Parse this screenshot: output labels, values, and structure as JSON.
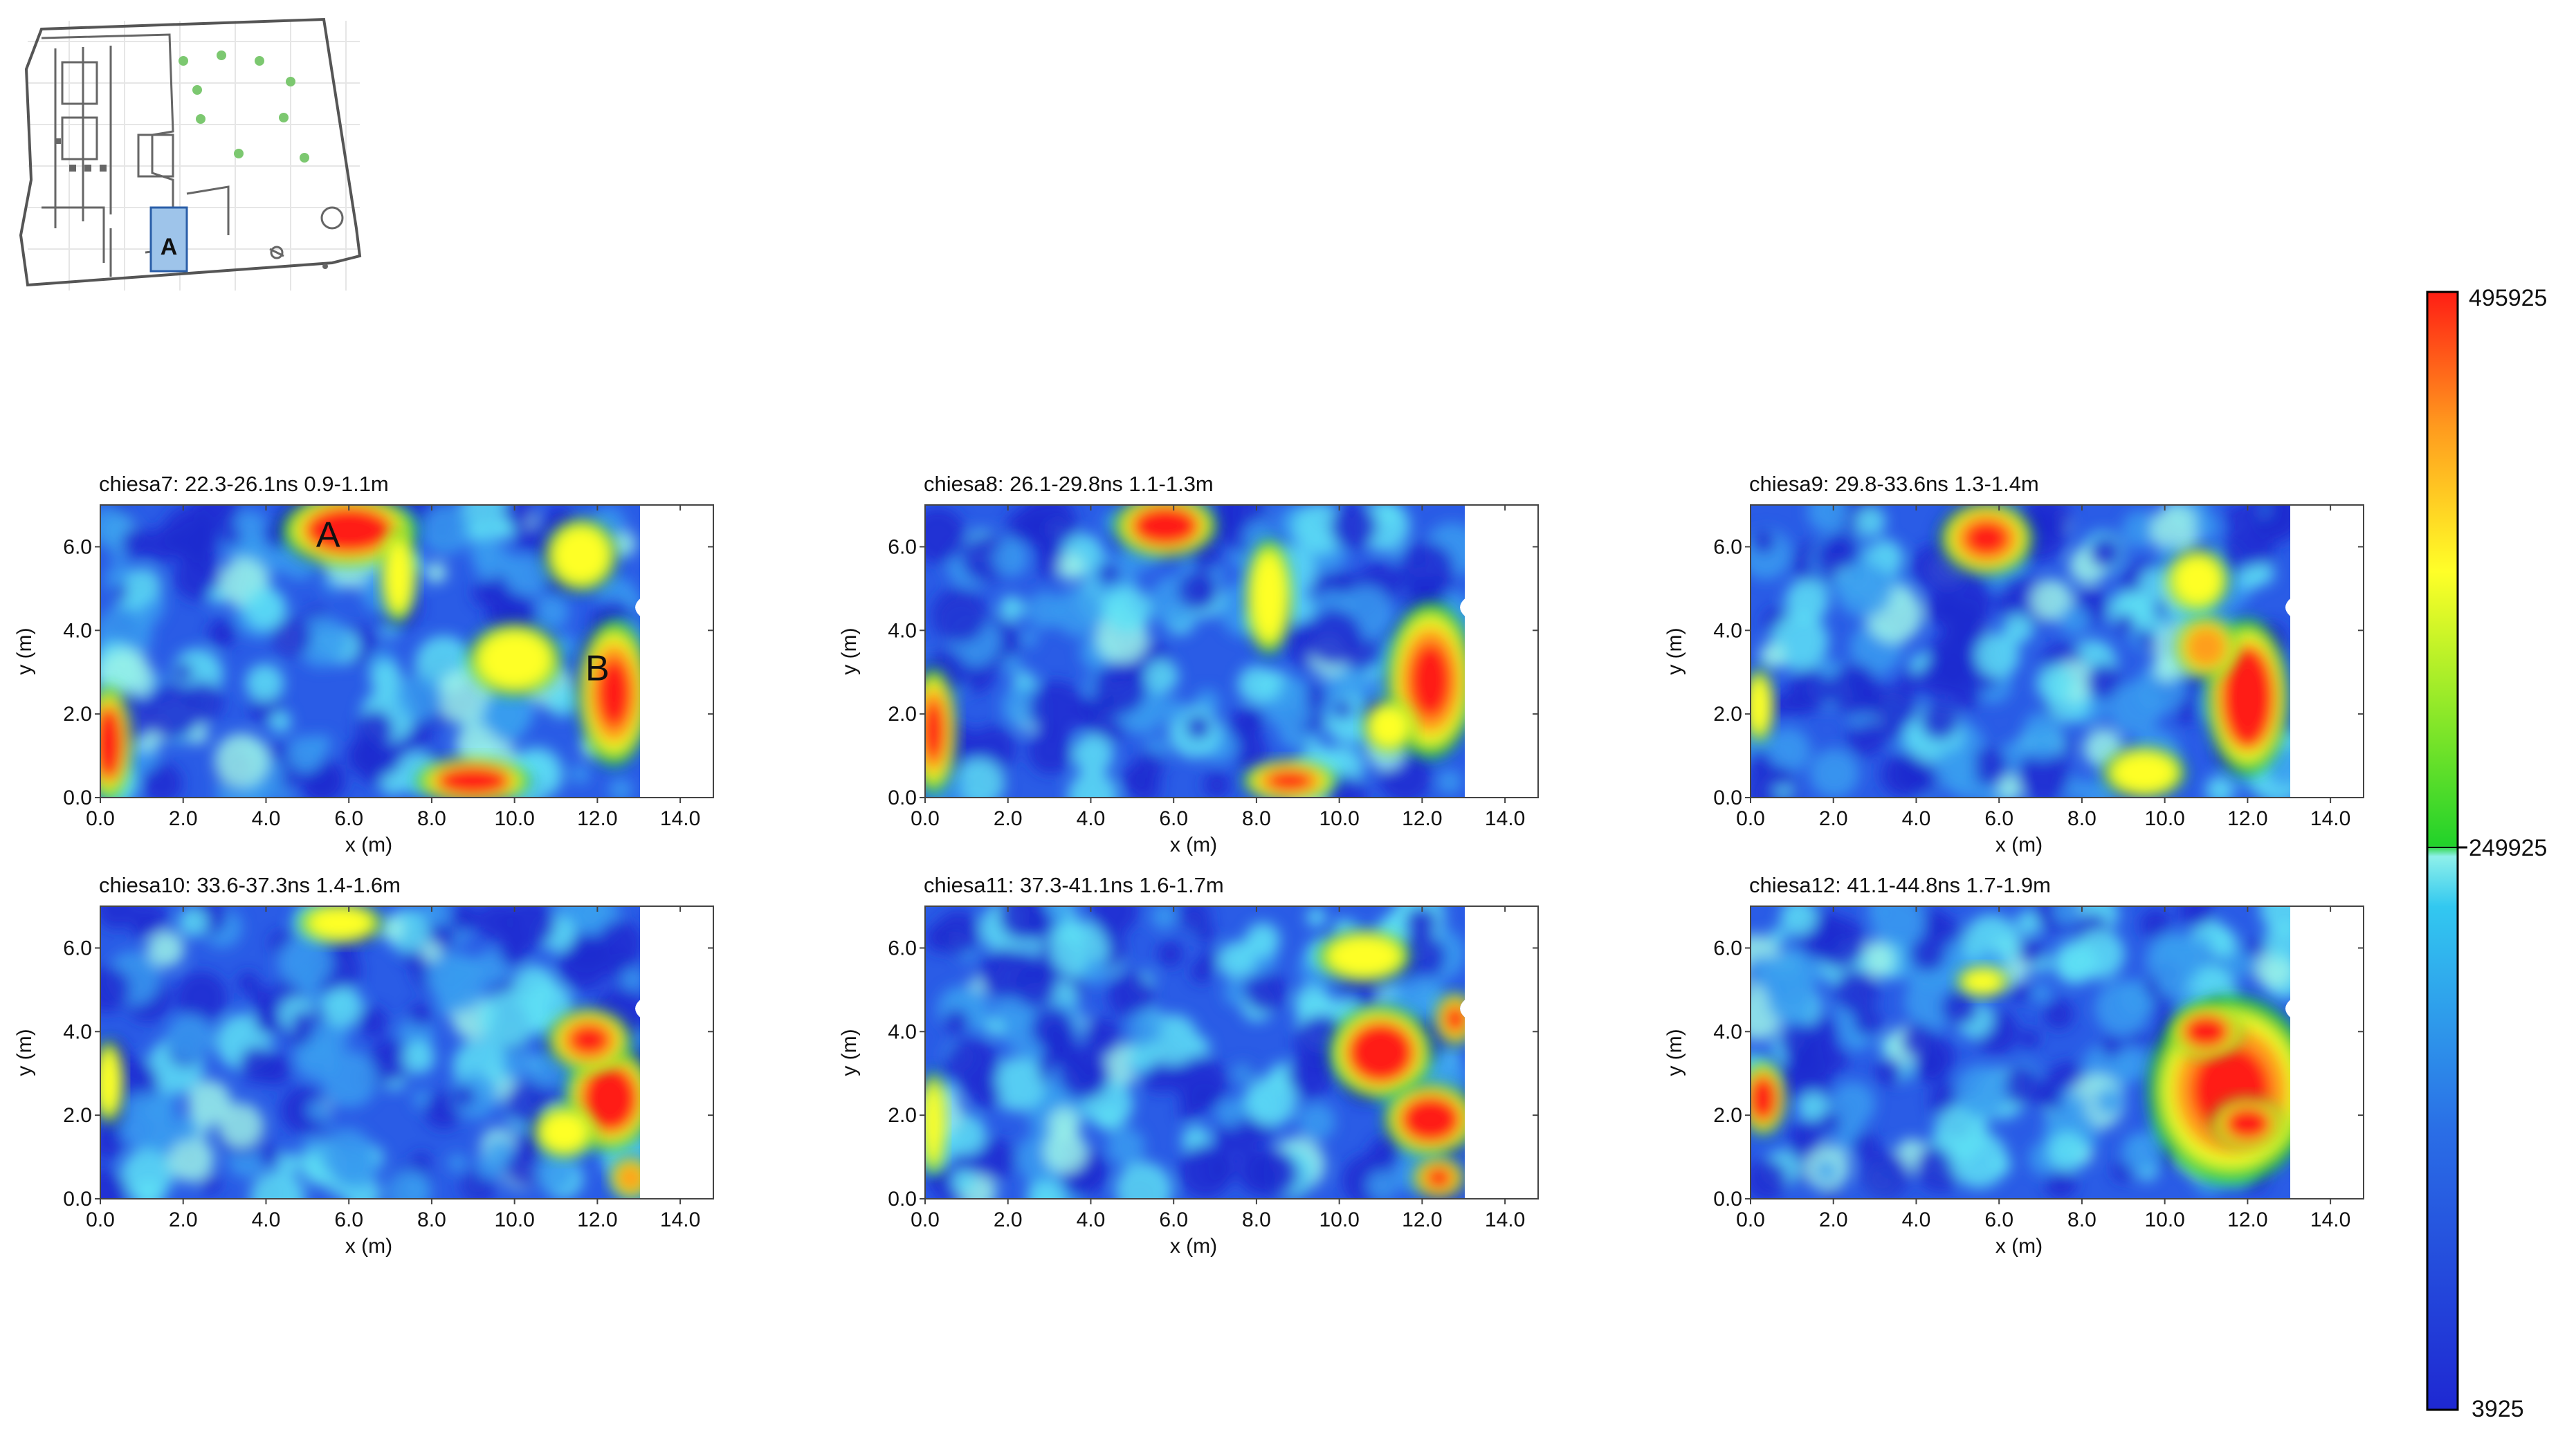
{
  "site_plan": {
    "area_label": "A"
  },
  "colorbar": {
    "max_label": "495925",
    "mid_label": "249925",
    "min_label": "3925",
    "max": 495925,
    "mid": 249925,
    "min": 3925,
    "colors": [
      "#1e28d2",
      "#2a6ee6",
      "#32c8f0",
      "#8ef0ea",
      "#22d22a",
      "#ffff28",
      "#ff9a1e",
      "#ff1e14"
    ]
  },
  "chart_data": [
    {
      "type": "heatmap",
      "title": "chiesa7:  22.3-26.1ns  0.9-1.1m",
      "xlabel": "x (m)",
      "ylabel": "y (m)",
      "xlim": [
        0,
        14.8
      ],
      "ylim": [
        0,
        7
      ],
      "xticks": [
        "0.0",
        "2.0",
        "4.0",
        "6.0",
        "8.0",
        "10.0",
        "12.0",
        "14.0"
      ],
      "yticks": [
        "0.0",
        "2.0",
        "4.0",
        "6.0"
      ],
      "annotations": [
        {
          "text": "A",
          "x": 5.5,
          "y": 6.3
        },
        {
          "text": "B",
          "x": 12.0,
          "y": 3.1
        }
      ],
      "hotspots": [
        {
          "x": 6.0,
          "y": 6.4,
          "w": 2.6,
          "h": 1.4,
          "level": 1.0
        },
        {
          "x": 0.2,
          "y": 1.3,
          "w": 0.9,
          "h": 2.2,
          "level": 0.95
        },
        {
          "x": 12.4,
          "y": 2.5,
          "w": 1.4,
          "h": 2.8,
          "level": 0.9
        },
        {
          "x": 9.0,
          "y": 0.4,
          "w": 2.2,
          "h": 0.9,
          "level": 0.95
        },
        {
          "x": 11.6,
          "y": 5.8,
          "w": 1.4,
          "h": 1.4,
          "level": 0.55
        },
        {
          "x": 7.2,
          "y": 5.3,
          "w": 0.7,
          "h": 1.8,
          "level": 0.5
        },
        {
          "x": 10.0,
          "y": 3.3,
          "w": 1.8,
          "h": 1.4,
          "level": 0.45
        }
      ]
    },
    {
      "type": "heatmap",
      "title": "chiesa8:  26.1-29.8ns  1.1-1.3m",
      "xlabel": "x (m)",
      "ylabel": "y (m)",
      "xlim": [
        0,
        14.8
      ],
      "ylim": [
        0,
        7
      ],
      "xticks": [
        "0.0",
        "2.0",
        "4.0",
        "6.0",
        "8.0",
        "10.0",
        "12.0",
        "14.0"
      ],
      "yticks": [
        "0.0",
        "2.0",
        "4.0",
        "6.0"
      ],
      "hotspots": [
        {
          "x": 5.8,
          "y": 6.5,
          "w": 2.0,
          "h": 1.2,
          "level": 1.0
        },
        {
          "x": 0.2,
          "y": 1.6,
          "w": 0.9,
          "h": 2.4,
          "level": 0.9
        },
        {
          "x": 12.2,
          "y": 2.8,
          "w": 1.7,
          "h": 3.0,
          "level": 0.9
        },
        {
          "x": 8.8,
          "y": 0.4,
          "w": 1.8,
          "h": 0.8,
          "level": 0.85
        },
        {
          "x": 8.3,
          "y": 4.8,
          "w": 0.9,
          "h": 2.2,
          "level": 0.5
        },
        {
          "x": 11.2,
          "y": 1.7,
          "w": 1.0,
          "h": 1.0,
          "level": 0.7
        }
      ]
    },
    {
      "type": "heatmap",
      "title": "chiesa9:  29.8-33.6ns  1.3-1.4m",
      "xlabel": "x (m)",
      "ylabel": "y (m)",
      "xlim": [
        0,
        14.8
      ],
      "ylim": [
        0,
        7
      ],
      "xticks": [
        "0.0",
        "2.0",
        "4.0",
        "6.0",
        "8.0",
        "10.0",
        "12.0",
        "14.0"
      ],
      "yticks": [
        "0.0",
        "2.0",
        "4.0",
        "6.0"
      ],
      "hotspots": [
        {
          "x": 5.7,
          "y": 6.2,
          "w": 1.8,
          "h": 1.4,
          "level": 0.85
        },
        {
          "x": 12.0,
          "y": 2.4,
          "w": 1.6,
          "h": 3.0,
          "level": 1.0
        },
        {
          "x": 11.0,
          "y": 3.6,
          "w": 1.2,
          "h": 1.2,
          "level": 0.8
        },
        {
          "x": 0.2,
          "y": 2.2,
          "w": 0.6,
          "h": 1.4,
          "level": 0.6
        },
        {
          "x": 9.5,
          "y": 0.6,
          "w": 1.6,
          "h": 1.0,
          "level": 0.55
        },
        {
          "x": 10.8,
          "y": 5.2,
          "w": 1.2,
          "h": 1.2,
          "level": 0.45
        }
      ]
    },
    {
      "type": "heatmap",
      "title": "chiesa10:  33.6-37.3ns  1.4-1.6m",
      "xlabel": "x (m)",
      "ylabel": "y (m)",
      "xlim": [
        0,
        14.8
      ],
      "ylim": [
        0,
        7
      ],
      "xticks": [
        "0.0",
        "2.0",
        "4.0",
        "6.0",
        "8.0",
        "10.0",
        "12.0",
        "14.0"
      ],
      "yticks": [
        "0.0",
        "2.0",
        "4.0",
        "6.0"
      ],
      "hotspots": [
        {
          "x": 12.3,
          "y": 2.4,
          "w": 1.7,
          "h": 2.0,
          "level": 1.0
        },
        {
          "x": 11.8,
          "y": 3.8,
          "w": 1.6,
          "h": 1.2,
          "level": 0.85
        },
        {
          "x": 11.2,
          "y": 1.6,
          "w": 1.2,
          "h": 1.0,
          "level": 0.7
        },
        {
          "x": 12.8,
          "y": 0.5,
          "w": 0.8,
          "h": 0.8,
          "level": 0.8
        },
        {
          "x": 0.2,
          "y": 2.8,
          "w": 0.6,
          "h": 1.6,
          "level": 0.6
        },
        {
          "x": 5.8,
          "y": 6.6,
          "w": 1.6,
          "h": 0.8,
          "level": 0.5
        }
      ]
    },
    {
      "type": "heatmap",
      "title": "chiesa11:  37.3-41.1ns  1.6-1.7m",
      "xlabel": "x (m)",
      "ylabel": "y (m)",
      "xlim": [
        0,
        14.8
      ],
      "ylim": [
        0,
        7
      ],
      "xticks": [
        "0.0",
        "2.0",
        "4.0",
        "6.0",
        "8.0",
        "10.0",
        "12.0",
        "14.0"
      ],
      "yticks": [
        "0.0",
        "2.0",
        "4.0",
        "6.0"
      ],
      "hotspots": [
        {
          "x": 11.0,
          "y": 3.5,
          "w": 2.0,
          "h": 1.8,
          "level": 1.0
        },
        {
          "x": 12.2,
          "y": 1.9,
          "w": 1.8,
          "h": 1.4,
          "level": 1.0
        },
        {
          "x": 12.4,
          "y": 0.5,
          "w": 1.0,
          "h": 0.8,
          "level": 0.85
        },
        {
          "x": 12.8,
          "y": 4.3,
          "w": 0.8,
          "h": 1.0,
          "level": 0.85
        },
        {
          "x": 0.2,
          "y": 1.8,
          "w": 0.5,
          "h": 2.0,
          "level": 0.6
        },
        {
          "x": 10.6,
          "y": 5.8,
          "w": 1.8,
          "h": 1.0,
          "level": 0.45
        }
      ]
    },
    {
      "type": "heatmap",
      "title": "chiesa12:  41.1-44.8ns  1.7-1.9m",
      "xlabel": "x (m)",
      "ylabel": "y (m)",
      "xlim": [
        0,
        14.8
      ],
      "ylim": [
        0,
        7
      ],
      "xticks": [
        "0.0",
        "2.0",
        "4.0",
        "6.0",
        "8.0",
        "10.0",
        "12.0",
        "14.0"
      ],
      "yticks": [
        "0.0",
        "2.0",
        "4.0",
        "6.0"
      ],
      "hotspots": [
        {
          "x": 11.6,
          "y": 2.6,
          "w": 3.2,
          "h": 3.6,
          "level": 0.9
        },
        {
          "x": 12.0,
          "y": 1.8,
          "w": 1.4,
          "h": 1.0,
          "level": 1.0
        },
        {
          "x": 11.0,
          "y": 4.0,
          "w": 1.4,
          "h": 1.0,
          "level": 0.95
        },
        {
          "x": 0.3,
          "y": 2.4,
          "w": 0.9,
          "h": 1.4,
          "level": 0.95
        },
        {
          "x": 5.6,
          "y": 5.2,
          "w": 1.0,
          "h": 0.6,
          "level": 0.45
        }
      ]
    }
  ]
}
